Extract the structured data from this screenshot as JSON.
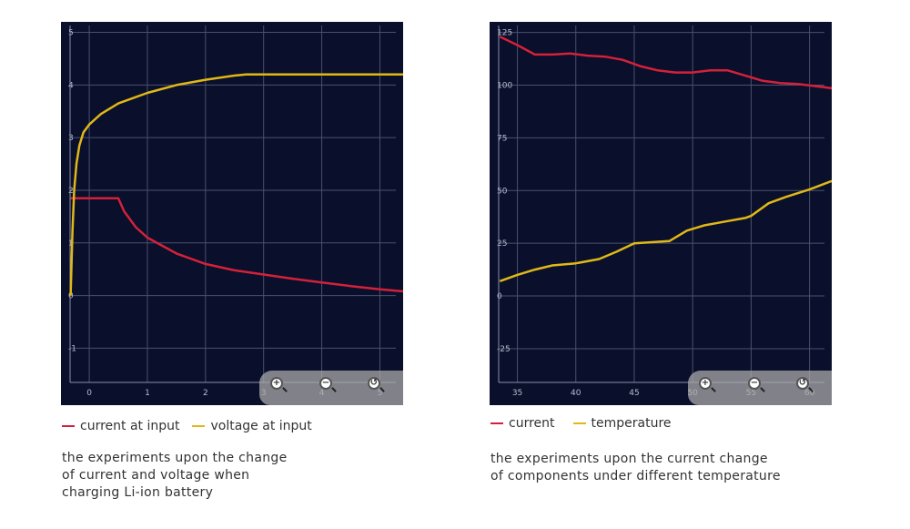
{
  "colors": {
    "current": "#d3213a",
    "voltage": "#e0b818",
    "grid": "#4a5070",
    "bg": "#0a0f2b"
  },
  "zoom_controls": [
    "zoom-in",
    "zoom-out",
    "reset-zoom"
  ],
  "chart_data": [
    {
      "type": "line",
      "title": "",
      "xlabel": "",
      "ylabel": "",
      "xlim": [
        -0.33,
        5.4
      ],
      "ylim": [
        -1.65,
        5.2
      ],
      "xticks": [
        "0",
        "1",
        "2",
        "3",
        "4",
        "5"
      ],
      "xtick_values": [
        0,
        1,
        2,
        3,
        4,
        5
      ],
      "yticks": [
        "5",
        "4",
        "3",
        "2",
        "1",
        "0",
        "-1"
      ],
      "ytick_values": [
        5,
        4,
        3,
        2,
        1,
        0,
        -1
      ],
      "grid": true,
      "legend": "bottom-left",
      "series": [
        {
          "name": "current at input",
          "color": "#d3213a",
          "points": [
            [
              -0.32,
              1.85
            ],
            [
              0.5,
              1.85
            ],
            [
              0.6,
              1.6
            ],
            [
              0.8,
              1.3
            ],
            [
              1,
              1.1
            ],
            [
              1.5,
              0.8
            ],
            [
              2,
              0.6
            ],
            [
              2.5,
              0.48
            ],
            [
              3,
              0.4
            ],
            [
              3.5,
              0.32
            ],
            [
              4,
              0.25
            ],
            [
              4.5,
              0.18
            ],
            [
              5,
              0.12
            ],
            [
              5.4,
              0.08
            ]
          ]
        },
        {
          "name": "voltage at input",
          "color": "#e0b818",
          "points": [
            [
              -0.32,
              0
            ],
            [
              -0.29,
              1.2
            ],
            [
              -0.26,
              2.0
            ],
            [
              -0.22,
              2.5
            ],
            [
              -0.17,
              2.85
            ],
            [
              -0.1,
              3.1
            ],
            [
              0,
              3.25
            ],
            [
              0.2,
              3.45
            ],
            [
              0.5,
              3.65
            ],
            [
              1,
              3.85
            ],
            [
              1.5,
              4.0
            ],
            [
              2,
              4.1
            ],
            [
              2.5,
              4.18
            ],
            [
              2.7,
              4.2
            ],
            [
              5.4,
              4.2
            ]
          ]
        }
      ]
    },
    {
      "type": "line",
      "title": "",
      "xlabel": "",
      "ylabel": "",
      "xlim": [
        33.4,
        61.9
      ],
      "ylim": [
        -41,
        130
      ],
      "xticks": [
        "35",
        "40",
        "45",
        "50",
        "55",
        "60"
      ],
      "xtick_values": [
        35,
        40,
        45,
        50,
        55,
        60
      ],
      "yticks": [
        "125",
        "100",
        "75",
        "50",
        "25",
        "0",
        "-25"
      ],
      "ytick_values": [
        125,
        100,
        75,
        50,
        25,
        0,
        -25
      ],
      "grid": true,
      "legend": "bottom-left",
      "series": [
        {
          "name": "current",
          "color": "#d3213a",
          "points": [
            [
              33.5,
              123
            ],
            [
              35,
              119
            ],
            [
              36.5,
              114.5
            ],
            [
              38,
              114.5
            ],
            [
              39.5,
              115
            ],
            [
              41,
              114
            ],
            [
              42.5,
              113.5
            ],
            [
              44,
              112
            ],
            [
              45.5,
              109
            ],
            [
              47,
              107
            ],
            [
              48.5,
              106
            ],
            [
              50,
              106
            ],
            [
              51.5,
              107
            ],
            [
              53,
              107
            ],
            [
              54.5,
              104.5
            ],
            [
              56,
              102
            ],
            [
              57.5,
              101
            ],
            [
              59,
              100.5
            ],
            [
              60.5,
              99.5
            ],
            [
              61.9,
              98.5
            ]
          ]
        },
        {
          "name": "temperature",
          "color": "#e0b818",
          "points": [
            [
              33.5,
              7
            ],
            [
              35,
              10
            ],
            [
              36.5,
              12.5
            ],
            [
              38,
              14.5
            ],
            [
              40,
              15.5
            ],
            [
              42,
              17.5
            ],
            [
              43.5,
              21
            ],
            [
              45,
              25
            ],
            [
              46.5,
              25.5
            ],
            [
              48,
              26
            ],
            [
              49.5,
              31
            ],
            [
              51,
              33.5
            ],
            [
              53,
              35.5
            ],
            [
              54.5,
              37
            ],
            [
              55,
              38
            ],
            [
              56.5,
              44
            ],
            [
              58,
              47
            ],
            [
              60,
              50.5
            ],
            [
              61.9,
              54.5
            ]
          ]
        }
      ]
    }
  ],
  "captions": [
    {
      "lines": [
        "the experiments upon the change",
        "of current and voltage when",
        "charging Li-ion battery"
      ]
    },
    {
      "lines": [
        "the experiments upon the current change",
        "of components under different temperature"
      ]
    }
  ]
}
